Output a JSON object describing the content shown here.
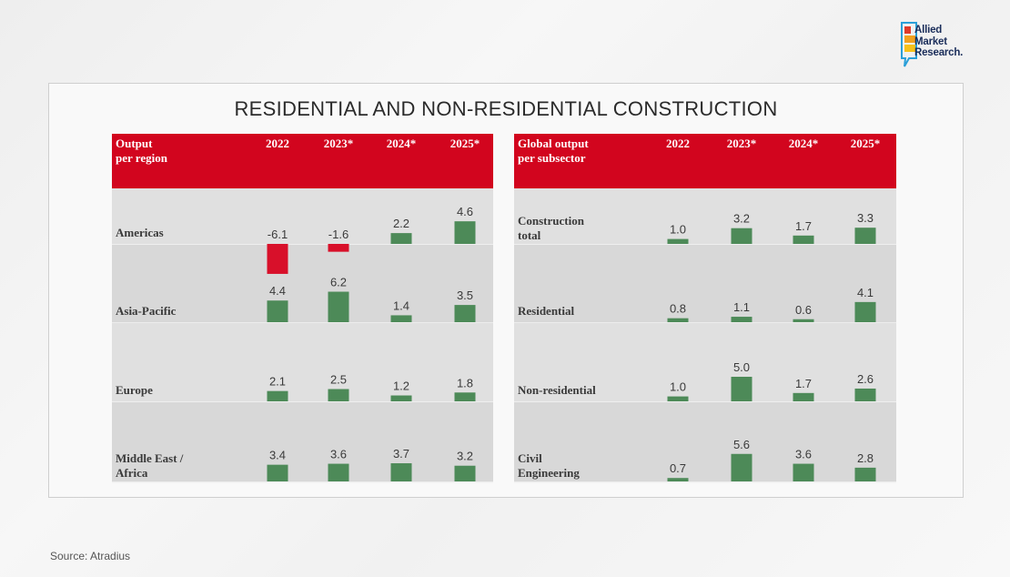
{
  "logo": {
    "line1": "Allied",
    "line2": "Market",
    "line3": "Research."
  },
  "chart_data": {
    "type": "table",
    "title": "RESIDENTIAL AND NON-RESIDENTIAL CONSTRUCTION",
    "colors": {
      "header": "#d2051e",
      "positive": "#4d8a58",
      "negative": "#d8102a",
      "row_odd": "#e0e0e0",
      "row_even": "#d8d8d8"
    },
    "tables": [
      {
        "header_label": [
          "Output",
          "per region"
        ],
        "years": [
          "2022",
          "2023*",
          "2024*",
          "2025*"
        ],
        "rows": [
          {
            "label": [
              "Americas"
            ],
            "values": [
              -6.1,
              -1.6,
              2.2,
              4.6
            ]
          },
          {
            "label": [
              "Asia-Pacific"
            ],
            "values": [
              4.4,
              6.2,
              1.4,
              3.5
            ]
          },
          {
            "label": [
              "Europe"
            ],
            "values": [
              2.1,
              2.5,
              1.2,
              1.8
            ]
          },
          {
            "label": [
              "Middle East /",
              "Africa"
            ],
            "values": [
              3.4,
              3.6,
              3.7,
              3.2
            ]
          }
        ]
      },
      {
        "header_label": [
          "Global output",
          "per subsector"
        ],
        "years": [
          "2022",
          "2023*",
          "2024*",
          "2025*"
        ],
        "rows": [
          {
            "label": [
              "Construction",
              "total"
            ],
            "values": [
              1.0,
              3.2,
              1.7,
              3.3
            ]
          },
          {
            "label": [
              "Residential"
            ],
            "values": [
              0.8,
              1.1,
              0.6,
              4.1
            ]
          },
          {
            "label": [
              "Non-residential"
            ],
            "values": [
              1.0,
              5.0,
              1.7,
              2.6
            ]
          },
          {
            "label": [
              "Civil",
              "Engineering"
            ],
            "values": [
              0.7,
              5.6,
              3.6,
              2.8
            ]
          }
        ]
      }
    ]
  },
  "source": "Source: Atradius"
}
